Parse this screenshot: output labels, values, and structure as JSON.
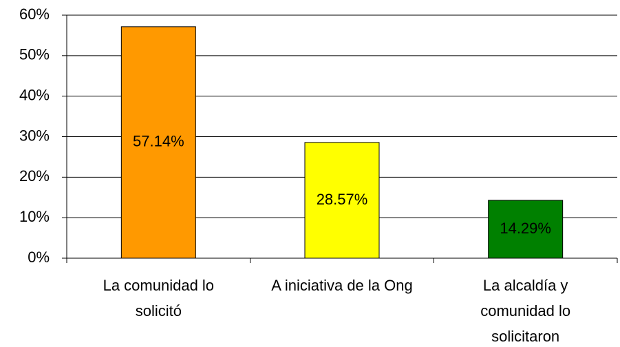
{
  "chart_data": {
    "type": "bar",
    "categories": [
      "La comunidad lo solicitó",
      "A iniciativa de la Ong",
      "La alcaldía y comunidad lo solicitaron"
    ],
    "values": [
      57.14,
      28.57,
      14.29
    ],
    "value_labels": [
      "57.14%",
      "28.57%",
      "14.29%"
    ],
    "colors": [
      "#ff9900",
      "#ffff00",
      "#008000"
    ],
    "ylim": [
      0,
      60
    ],
    "yticks": [
      {
        "value": 0,
        "label": "0%"
      },
      {
        "value": 10,
        "label": "10%"
      },
      {
        "value": 20,
        "label": "20%"
      },
      {
        "value": 30,
        "label": "30%"
      },
      {
        "value": 40,
        "label": "40%"
      },
      {
        "value": 50,
        "label": "50%"
      },
      {
        "value": 60,
        "label": "60%"
      }
    ],
    "grid": true
  }
}
